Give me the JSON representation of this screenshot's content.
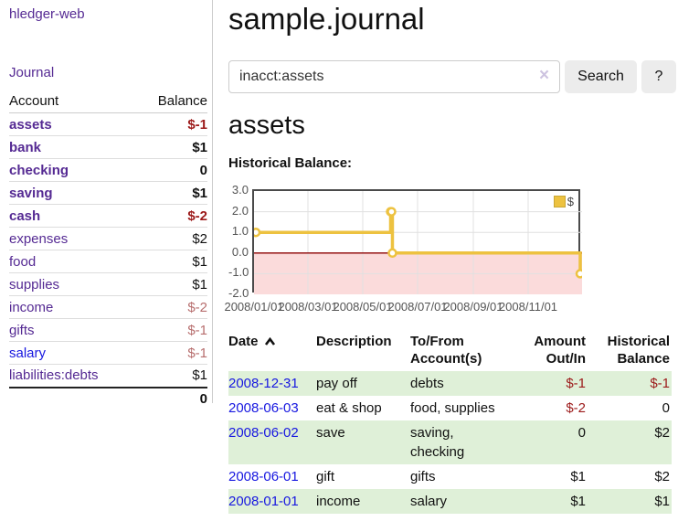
{
  "sidebar": {
    "app_title": "hledger-web",
    "journal_link": "Journal",
    "accounts_table": {
      "headers": {
        "account": "Account",
        "balance": "Balance"
      },
      "rows": [
        {
          "name": "assets",
          "balance": "$-1",
          "level": 1,
          "bold": true,
          "neg": "strong"
        },
        {
          "name": "bank",
          "balance": "$1",
          "level": 2,
          "bold": true,
          "neg": "none"
        },
        {
          "name": "checking",
          "balance": "0",
          "level": 3,
          "bold": true,
          "neg": "none"
        },
        {
          "name": "saving",
          "balance": "$1",
          "level": 3,
          "bold": true,
          "neg": "none"
        },
        {
          "name": "cash",
          "balance": "$-2",
          "level": 2,
          "bold": true,
          "neg": "strong"
        },
        {
          "name": "expenses",
          "balance": "$2",
          "level": 1,
          "bold": false,
          "neg": "none"
        },
        {
          "name": "food",
          "balance": "$1",
          "level": 2,
          "bold": false,
          "neg": "none"
        },
        {
          "name": "supplies",
          "balance": "$1",
          "level": 2,
          "bold": false,
          "neg": "none"
        },
        {
          "name": "income",
          "balance": "$-2",
          "level": 1,
          "bold": false,
          "neg": "soft"
        },
        {
          "name": "gifts",
          "balance": "$-1",
          "level": 2,
          "bold": false,
          "neg": "soft"
        },
        {
          "name": "salary",
          "balance": "$-1",
          "level": 2,
          "bold": false,
          "neg": "soft",
          "link_color": "blue"
        },
        {
          "name": "liabilities:debts",
          "balance": "$1",
          "level": 1,
          "bold": false,
          "neg": "none"
        }
      ],
      "total": "0"
    }
  },
  "main": {
    "title": "sample.journal",
    "search": {
      "value": "inacct:assets",
      "clear_icon": "×",
      "button_label": "Search",
      "help_label": "?"
    },
    "account_heading": "assets",
    "chart_label": "Historical Balance:"
  },
  "chart_data": {
    "type": "line",
    "step": true,
    "title": "Historical Balance:",
    "series": [
      {
        "name": "$",
        "color": "#edc240",
        "points": [
          {
            "x": "2008/01/01",
            "y": 1
          },
          {
            "x": "2008/06/01",
            "y": 2
          },
          {
            "x": "2008/06/02",
            "y": 2
          },
          {
            "x": "2008/06/03",
            "y": 0
          },
          {
            "x": "2008/12/31",
            "y": -1
          }
        ]
      }
    ],
    "x_ticks": [
      "2008/01/01",
      "2008/03/01",
      "2008/05/01",
      "2008/07/01",
      "2008/09/01",
      "2008/11/01"
    ],
    "y_ticks": [
      3.0,
      2.0,
      1.0,
      0.0,
      -1.0,
      -2.0
    ],
    "y_tick_labels": [
      "3.0",
      "2.0",
      "1.0",
      "0.0",
      "-1.0",
      "-2.0"
    ],
    "xlim": [
      "2008/01/01",
      "2008/12/31"
    ],
    "ylim": [
      -2,
      3
    ],
    "grid": true,
    "legend_position": "top-right",
    "negative_region_color": "#fbdbdb",
    "zero_line_color": "#8b0000",
    "grid_color": "#e0e0e0"
  },
  "register_table": {
    "headers": {
      "date": "Date",
      "description": "Description",
      "accounts": "To/From Account(s)",
      "amount": "Amount Out/In",
      "balance": "Historical Balance"
    },
    "sort": {
      "column": "date",
      "direction": "asc"
    },
    "rows": [
      {
        "date": "2008-12-31",
        "description": "pay off",
        "accounts": "debts",
        "amount": "$-1",
        "balance": "$-1",
        "amount_neg": true,
        "balance_neg": true
      },
      {
        "date": "2008-06-03",
        "description": "eat & shop",
        "accounts": "food, supplies",
        "amount": "$-2",
        "balance": "0",
        "amount_neg": true,
        "balance_neg": false
      },
      {
        "date": "2008-06-02",
        "description": "save",
        "accounts": "saving, checking",
        "amount": "0",
        "balance": "$2",
        "amount_neg": false,
        "balance_neg": false
      },
      {
        "date": "2008-06-01",
        "description": "gift",
        "accounts": "gifts",
        "amount": "$1",
        "balance": "$2",
        "amount_neg": false,
        "balance_neg": false
      },
      {
        "date": "2008-01-01",
        "description": "income",
        "accounts": "salary",
        "amount": "$1",
        "balance": "$1",
        "amount_neg": false,
        "balance_neg": false
      }
    ]
  }
}
